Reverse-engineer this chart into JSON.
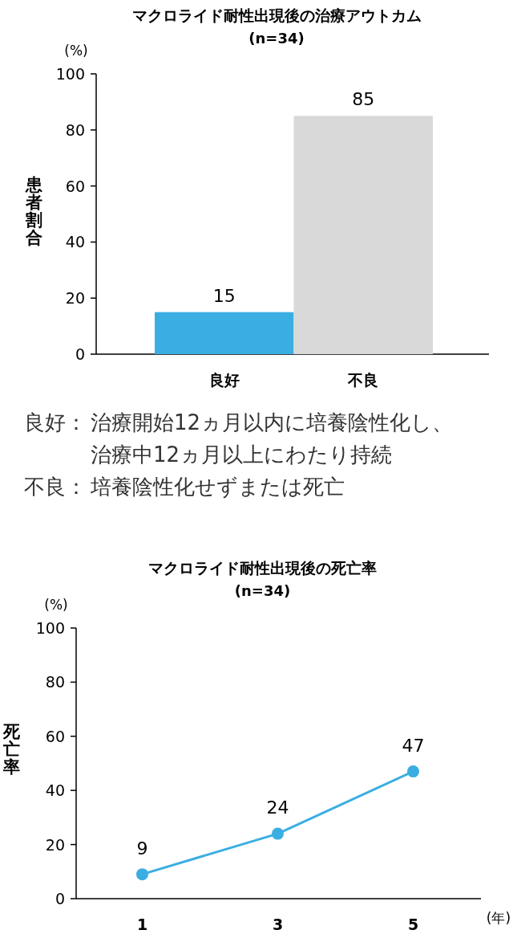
{
  "chart_data": [
    {
      "type": "bar",
      "title": "マクロライド耐性出現後の治療アウトカム",
      "subtitle": "(n=34)",
      "ylabel": "患者割合",
      "categories": [
        "良好",
        "不良"
      ],
      "values": [
        15,
        85
      ],
      "colors": [
        "#3aaee2",
        "#d9d9d9"
      ],
      "ylim": [
        0,
        100
      ],
      "yticks": [
        0,
        20,
        40,
        60,
        80,
        100
      ],
      "grid": false,
      "data_labels": true,
      "annotations": [
        "(%)",
        "良好：治療開始12ヵ月以内に培養陰性化し、治療中12ヵ月以上にわたり持続",
        "不良：培養陰性化せずまたは死亡"
      ]
    },
    {
      "type": "line",
      "title": "マクロライド耐性出現後の死亡率",
      "subtitle": "(n=34)",
      "ylabel": "死亡率",
      "xlabel": "(年)",
      "categories": [
        "1",
        "3",
        "5"
      ],
      "values": [
        9,
        24,
        47
      ],
      "color": "#3aaee2",
      "marker": "circle",
      "ylim": [
        0,
        100
      ],
      "yticks": [
        0,
        20,
        40,
        60,
        80,
        100
      ],
      "grid": false,
      "data_labels": true,
      "annotations": [
        "(%)"
      ]
    }
  ]
}
